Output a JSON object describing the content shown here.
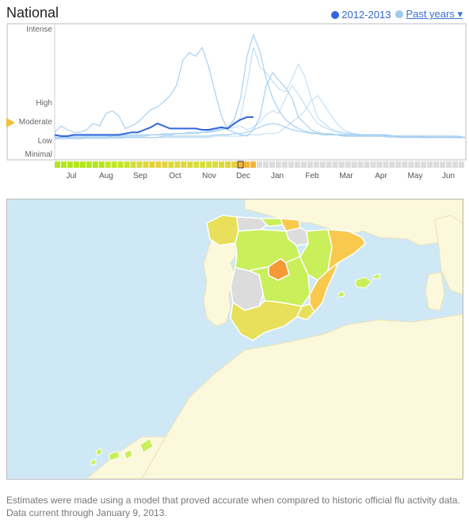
{
  "header": {
    "title": "National",
    "current_season_label": "2012-2013",
    "past_years_label": "Past years ▾"
  },
  "chart_data": {
    "type": "line",
    "levels": [
      "Intense",
      "High",
      "Moderate",
      "Low",
      "Minimal"
    ],
    "months": [
      "Jul",
      "Aug",
      "Sep",
      "Oct",
      "Nov",
      "Dec",
      "Jan",
      "Feb",
      "Mar",
      "Apr",
      "May",
      "Jun"
    ],
    "ylim": [
      0,
      100
    ],
    "current_marker_level": "Moderate",
    "series": [
      {
        "role": "current",
        "values": [
          16,
          15,
          15,
          16,
          16,
          16,
          16,
          16,
          16,
          16,
          16,
          17,
          18,
          18,
          20,
          22,
          25,
          23,
          21,
          21,
          21,
          21,
          21,
          20,
          20,
          21,
          22,
          21,
          25,
          28,
          30,
          30
        ]
      },
      {
        "role": "past",
        "values": [
          18,
          23,
          20,
          18,
          18,
          20,
          25,
          23,
          33,
          35,
          31,
          21,
          23,
          26,
          31,
          36,
          38,
          42,
          47,
          55,
          75,
          81,
          78,
          85,
          70,
          50,
          31,
          20,
          18,
          16,
          15,
          20,
          30,
          55,
          65,
          59,
          53,
          45,
          30,
          25,
          20,
          18,
          17,
          17,
          16,
          16,
          16,
          16,
          16,
          16,
          16,
          16,
          15,
          15,
          15,
          15,
          15,
          15,
          15,
          15,
          15,
          15,
          15,
          15,
          14
        ]
      },
      {
        "role": "past",
        "values": [
          14,
          14,
          14,
          15,
          15,
          15,
          15,
          15,
          15,
          15,
          16,
          16,
          16,
          16,
          16,
          16,
          16,
          17,
          17,
          17,
          17,
          18,
          18,
          18,
          19,
          19,
          20,
          21,
          22,
          23,
          20,
          22,
          26,
          32,
          35,
          33,
          45,
          55,
          48,
          40,
          32,
          25,
          22,
          20,
          18,
          17,
          17,
          16,
          16,
          16,
          16,
          16,
          16,
          15,
          15,
          15,
          15,
          15,
          15,
          15,
          15,
          15,
          14,
          14,
          14
        ]
      },
      {
        "role": "past",
        "values": [
          14,
          14,
          14,
          14,
          14,
          14,
          14,
          14,
          14,
          15,
          15,
          15,
          15,
          15,
          15,
          16,
          16,
          16,
          16,
          17,
          17,
          17,
          17,
          18,
          18,
          19,
          20,
          22,
          28,
          45,
          78,
          95,
          82,
          60,
          45,
          35,
          28,
          24,
          21,
          19,
          18,
          17,
          16,
          16,
          16,
          16,
          15,
          15,
          15,
          15,
          15,
          15,
          15,
          15,
          15,
          15,
          15,
          15,
          14,
          14,
          14,
          14,
          14,
          14,
          14
        ]
      },
      {
        "role": "past",
        "values": [
          15,
          15,
          15,
          15,
          15,
          15,
          15,
          15,
          15,
          15,
          15,
          16,
          16,
          16,
          16,
          16,
          16,
          17,
          17,
          17,
          17,
          18,
          18,
          18,
          19,
          20,
          21,
          22,
          24,
          30,
          55,
          85,
          70,
          65,
          58,
          52,
          50,
          60,
          72,
          62,
          45,
          30,
          25,
          21,
          19,
          18,
          17,
          17,
          16,
          16,
          16,
          16,
          16,
          15,
          15,
          15,
          15,
          15,
          15,
          15,
          15,
          15,
          15,
          14,
          14
        ]
      },
      {
        "role": "past",
        "values": [
          13,
          13,
          13,
          13,
          13,
          14,
          14,
          14,
          14,
          14,
          14,
          14,
          14,
          14,
          14,
          14,
          14,
          15,
          15,
          15,
          15,
          15,
          15,
          15,
          15,
          16,
          16,
          16,
          17,
          17,
          18,
          20,
          22,
          24,
          25,
          24,
          22,
          20,
          19,
          18,
          17,
          17,
          16,
          16,
          16,
          15,
          15,
          15,
          15,
          15,
          15,
          15,
          15,
          15,
          14,
          14,
          14,
          14,
          14,
          14,
          14,
          14,
          14,
          14,
          14
        ]
      },
      {
        "role": "past",
        "values": [
          13,
          13,
          13,
          13,
          13,
          13,
          13,
          13,
          13,
          13,
          13,
          14,
          14,
          14,
          14,
          14,
          14,
          14,
          14,
          14,
          14,
          14,
          14,
          14,
          14,
          15,
          15,
          15,
          15,
          15,
          16,
          16,
          16,
          17,
          17,
          18,
          22,
          26,
          30,
          35,
          43,
          47,
          40,
          32,
          25,
          20,
          18,
          16,
          15,
          15,
          15,
          15,
          14,
          14,
          14,
          14,
          14,
          14,
          14,
          14,
          14,
          14,
          14,
          14,
          14
        ]
      }
    ],
    "strip": [
      "#b5e61d",
      "#b5e61d",
      "#b5e61d",
      "#b5e61d",
      "#b5e61d",
      "#b5e61d",
      "#b5e61d",
      "#b5e61d",
      "#c3e827",
      "#c3e827",
      "#c3e827",
      "#c9e52d",
      "#d6df3a",
      "#d6df3a",
      "#dcd93f",
      "#e6d23f",
      "#e6d23f",
      "#e2d43f",
      "#dcd93f",
      "#dcd93f",
      "#dcd93f",
      "#d9db3c",
      "#d6df3a",
      "#d6df3a",
      "#d6df3a",
      "#dcd93f",
      "#dcd93f",
      "#e6d23f",
      "#e6d23f",
      "#f4b73b",
      "#f4b73b",
      "#f4b73b",
      "#dcdcdc",
      "#dcdcdc",
      "#dcdcdc",
      "#dcdcdc",
      "#dcdcdc",
      "#dcdcdc",
      "#dcdcdc",
      "#dcdcdc",
      "#dcdcdc",
      "#dcdcdc",
      "#dcdcdc",
      "#dcdcdc",
      "#dcdcdc",
      "#dcdcdc",
      "#dcdcdc",
      "#dcdcdc",
      "#dcdcdc",
      "#dcdcdc",
      "#dcdcdc",
      "#dcdcdc",
      "#dcdcdc",
      "#dcdcdc",
      "#dcdcdc",
      "#dcdcdc",
      "#dcdcdc",
      "#dcdcdc",
      "#dcdcdc",
      "#dcdcdc",
      "#dcdcdc",
      "#dcdcdc",
      "#dcdcdc",
      "#dcdcdc",
      "#dcdcdc"
    ],
    "current_week_index": 29
  },
  "colors": {
    "current": "#3366dd",
    "past": "#9ecbef",
    "sea": "#cfe8f5",
    "land": "#fbf8dc",
    "minimal": "#c9ef5b",
    "low": "#e8e05a",
    "moderate": "#f8c94d",
    "high": "#f59a36",
    "nodata": "#dcdcdc",
    "marker": "#f1c232"
  },
  "map": {
    "regions": [
      {
        "id": "galicia",
        "level": "low"
      },
      {
        "id": "asturias",
        "level": "nodata"
      },
      {
        "id": "cantabria",
        "level": "minimal"
      },
      {
        "id": "basque",
        "level": "moderate"
      },
      {
        "id": "navarra",
        "level": "nodata"
      },
      {
        "id": "rioja",
        "level": "minimal"
      },
      {
        "id": "castilla-leon",
        "level": "minimal"
      },
      {
        "id": "aragon",
        "level": "minimal"
      },
      {
        "id": "catalonia",
        "level": "moderate"
      },
      {
        "id": "madrid",
        "level": "high"
      },
      {
        "id": "extremadura",
        "level": "nodata"
      },
      {
        "id": "castilla-la-mancha",
        "level": "minimal"
      },
      {
        "id": "valencia",
        "level": "moderate"
      },
      {
        "id": "andalusia",
        "level": "low"
      },
      {
        "id": "murcia",
        "level": "low"
      },
      {
        "id": "balearic",
        "level": "minimal"
      },
      {
        "id": "canary",
        "level": "minimal"
      }
    ]
  },
  "footnote": "Estimates were made using a model that proved accurate when compared to historic official flu activity data. Data current through January 9, 2013."
}
